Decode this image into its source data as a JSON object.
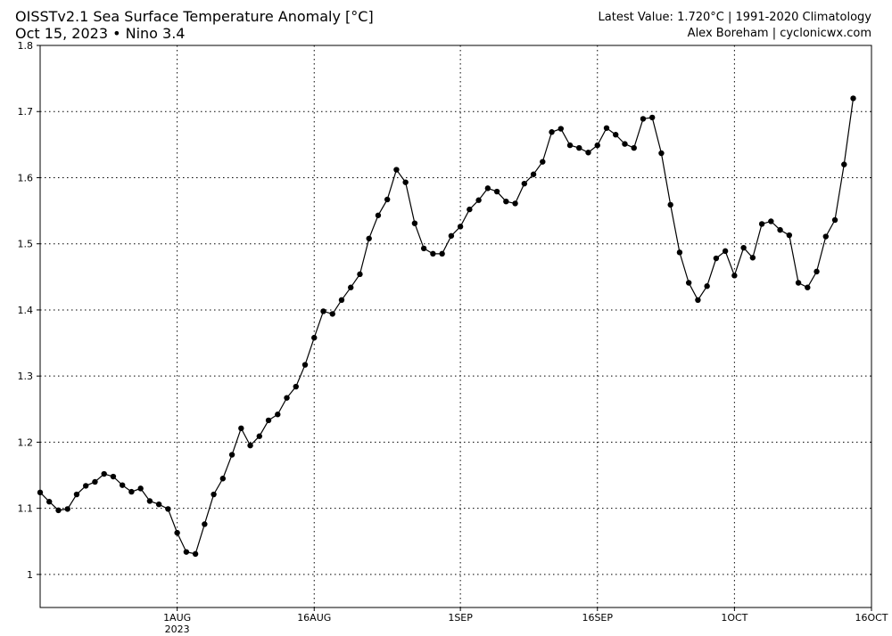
{
  "header": {
    "title": "OISSTv2.1 Sea Surface Temperature Anomaly [°C]",
    "subtitle": "Oct 15, 2023 • Nino 3.4",
    "latest": "Latest Value: 1.720°C | 1991-2020 Climatology",
    "credit": "Alex Boreham | cyclonicwx.com"
  },
  "chart_data": {
    "type": "line",
    "title": "OISSTv2.1 Sea Surface Temperature Anomaly [°C]",
    "subtitle": "Oct 15, 2023 • Nino 3.4",
    "xlabel": "",
    "ylabel": "",
    "xlim": [
      "2023-07-17",
      "2023-10-16"
    ],
    "ylim": [
      0.95,
      1.8
    ],
    "grid": true,
    "grid_style": "dotted",
    "marker": "circle",
    "line_color": "#000000",
    "x_ticks": [
      {
        "date": "2023-08-01",
        "label": "1AUG",
        "sublabel": "2023"
      },
      {
        "date": "2023-08-16",
        "label": "16AUG",
        "sublabel": ""
      },
      {
        "date": "2023-09-01",
        "label": "1SEP",
        "sublabel": ""
      },
      {
        "date": "2023-09-16",
        "label": "16SEP",
        "sublabel": ""
      },
      {
        "date": "2023-10-01",
        "label": "1OCT",
        "sublabel": ""
      },
      {
        "date": "2023-10-16",
        "label": "16OCT",
        "sublabel": ""
      }
    ],
    "y_ticks": [
      1.0,
      1.1,
      1.2,
      1.3,
      1.4,
      1.5,
      1.6,
      1.7,
      1.8
    ],
    "y_tick_labels": [
      "1",
      "1.1",
      "1.2",
      "1.3",
      "1.4",
      "1.5",
      "1.6",
      "1.7",
      "1.8"
    ],
    "series": [
      {
        "start_date": "2023-07-17",
        "step_days": 1,
        "values": [
          1.124,
          1.11,
          1.097,
          1.099,
          1.121,
          1.134,
          1.14,
          1.152,
          1.148,
          1.135,
          1.125,
          1.13,
          1.111,
          1.106,
          1.099,
          1.063,
          1.034,
          1.031,
          1.076,
          1.121,
          1.145,
          1.181,
          1.221,
          1.195,
          1.209,
          1.233,
          1.242,
          1.267,
          1.284,
          1.317,
          1.358,
          1.398,
          1.394,
          1.415,
          1.434,
          1.454,
          1.508,
          1.543,
          1.567,
          1.612,
          1.593,
          1.531,
          1.493,
          1.485,
          1.485,
          1.512,
          1.526,
          1.552,
          1.566,
          1.584,
          1.579,
          1.564,
          1.561,
          1.591,
          1.605,
          1.624,
          1.669,
          1.674,
          1.649,
          1.645,
          1.638,
          1.649,
          1.675,
          1.665,
          1.651,
          1.645,
          1.689,
          1.691,
          1.637,
          1.559,
          1.487,
          1.441,
          1.415,
          1.436,
          1.478,
          1.489,
          1.452,
          1.494,
          1.479,
          1.53,
          1.534,
          1.521,
          1.513,
          1.441,
          1.434,
          1.458,
          1.511,
          1.536,
          1.62,
          1.72
        ]
      }
    ]
  }
}
